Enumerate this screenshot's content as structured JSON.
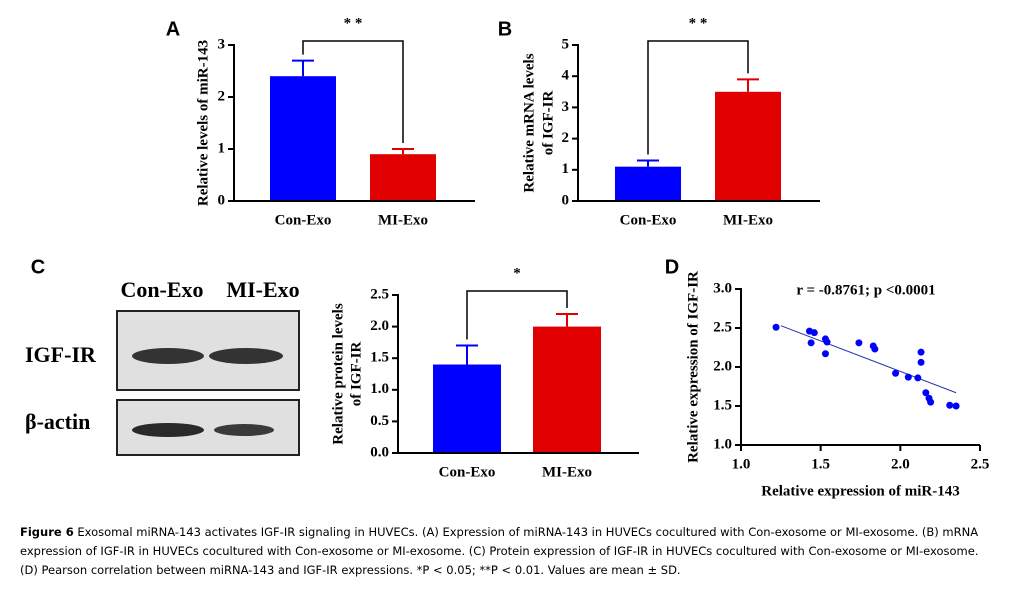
{
  "chart_data": [
    {
      "type": "bar",
      "panel": "A",
      "ylabel": [
        "Relative levels of miR-143"
      ],
      "categories": [
        "Con-Exo",
        "MI-Exo"
      ],
      "values": [
        2.4,
        0.9
      ],
      "errors": [
        0.3,
        0.1
      ],
      "colors": [
        "#0000ff",
        "#e00000"
      ],
      "ylim": [
        0,
        3
      ],
      "yticks": [
        0,
        1,
        2,
        3
      ],
      "significance": "* *"
    },
    {
      "type": "bar",
      "panel": "B",
      "ylabel": [
        "Relative mRNA levels",
        "of  IGF-IR"
      ],
      "categories": [
        "Con-Exo",
        "MI-Exo"
      ],
      "values": [
        1.1,
        3.5
      ],
      "errors": [
        0.2,
        0.4
      ],
      "colors": [
        "#0000ff",
        "#e00000"
      ],
      "ylim": [
        0,
        5
      ],
      "yticks": [
        0,
        1,
        2,
        3,
        4,
        5
      ],
      "significance": "* *"
    },
    {
      "type": "bar",
      "panel": "C",
      "ylabel": [
        "Relative protein levels",
        "of  IGF-IR"
      ],
      "categories": [
        "Con-Exo",
        "MI-Exo"
      ],
      "values": [
        1.4,
        2.0
      ],
      "errors": [
        0.3,
        0.2
      ],
      "colors": [
        "#0000ff",
        "#e00000"
      ],
      "ylim": [
        0,
        2.5
      ],
      "yticks": [
        {
          "value": 0,
          "label": "0.0"
        },
        0.5,
        {
          "value": 1,
          "label": "1.0"
        },
        1.5,
        {
          "value": 2,
          "label": "2.0"
        },
        2.5
      ],
      "significance": "*"
    },
    {
      "type": "scatter",
      "panel": "D",
      "ylabel": [
        "Relative expression of IGF-IR"
      ],
      "xlabel": "Relative expression of miR-143",
      "annotation": "r = -0.8761; p <0.0001",
      "color": "#0000ff",
      "x": [
        1.22,
        1.43,
        1.46,
        1.44,
        1.53,
        1.54,
        1.53,
        1.74,
        1.83,
        1.84,
        1.97,
        2.05,
        2.11,
        2.13,
        2.13,
        2.16,
        2.18,
        2.19,
        2.31,
        2.35
      ],
      "y": [
        2.51,
        2.46,
        2.44,
        2.31,
        2.36,
        2.32,
        2.17,
        2.31,
        2.27,
        2.23,
        1.92,
        1.87,
        1.86,
        2.19,
        2.06,
        1.67,
        1.6,
        1.55,
        1.51,
        1.5
      ],
      "trendline": {
        "x": [
          1.25,
          2.35
        ],
        "y": [
          2.53,
          1.67
        ]
      },
      "xlim": [
        1.0,
        2.5
      ],
      "xticks": [
        {
          "value": 1,
          "label": "1.0"
        },
        1.5,
        {
          "value": 2,
          "label": "2.0"
        },
        2.5
      ],
      "ylim": [
        1.0,
        3.0
      ],
      "yticks": [
        {
          "value": 1,
          "label": "1.0"
        },
        1.5,
        {
          "value": 2,
          "label": "2.0"
        },
        2.5,
        {
          "value": 3,
          "label": "3.0"
        }
      ]
    }
  ],
  "blot": {
    "lanes": [
      "Con-Exo",
      "MI-Exo"
    ],
    "rows": [
      "IGF-IR",
      "β-actin"
    ]
  },
  "caption": {
    "label": "Figure 6",
    "text": "Exosomal miRNA-143 activates IGF-IR signaling in HUVECs. (A) Expression of miRNA-143 in HUVECs cocultured with Con-exosome or MI-exosome. (B) mRNA expression of IGF-IR in HUVECs cocultured with Con-exosome or MI-exosome. (C) Protein expression of IGF-IR in HUVECs cocultured with Con-exosome or MI-exosome. (D) Pearson correlation between miRNA-143 and IGF-IR expressions. *P < 0.05; **P < 0.01. Values are mean ± SD."
  }
}
